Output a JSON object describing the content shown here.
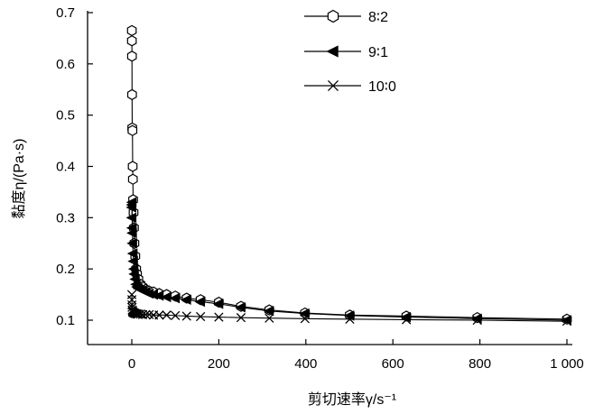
{
  "chart_data": {
    "type": "line",
    "xlabel": "剪切速率γ/s⁻¹",
    "ylabel": "黏度η/(Pa·s)",
    "xlim": [
      -100,
      1000
    ],
    "ylim": [
      0.05,
      0.7
    ],
    "xticks": [
      0,
      200,
      400,
      600,
      800,
      1000
    ],
    "xtick_labels": [
      "0",
      "200",
      "400",
      "600",
      "800",
      "1 000"
    ],
    "yticks": [
      0.1,
      0.2,
      0.3,
      0.4,
      0.5,
      0.6,
      0.7
    ],
    "ytick_labels": [
      "0.1",
      "0.2",
      "0.3",
      "0.4",
      "0.5",
      "0.6",
      "0.7"
    ],
    "legend_position": "top-center",
    "series": [
      {
        "name": "8∶2",
        "marker": "hexagon",
        "x": [
          0.1,
          0.2,
          0.4,
          0.6,
          1,
          1.5,
          2,
          2.5,
          3,
          4,
          5,
          6,
          8,
          10,
          12,
          15,
          20,
          25,
          32,
          40,
          50,
          63,
          80,
          100,
          126,
          158,
          200,
          251,
          316,
          398,
          501,
          631,
          794,
          1000
        ],
        "y": [
          0.665,
          0.645,
          0.615,
          0.54,
          0.475,
          0.47,
          0.4,
          0.375,
          0.335,
          0.31,
          0.28,
          0.25,
          0.225,
          0.2,
          0.19,
          0.18,
          0.17,
          0.165,
          0.16,
          0.157,
          0.155,
          0.152,
          0.15,
          0.147,
          0.143,
          0.14,
          0.135,
          0.127,
          0.12,
          0.114,
          0.11,
          0.108,
          0.105,
          0.102
        ]
      },
      {
        "name": "9∶1",
        "marker": "triangle-left",
        "x": [
          0.1,
          0.2,
          0.4,
          0.6,
          1,
          1.5,
          2,
          3,
          4,
          5,
          6,
          8,
          10,
          12,
          15,
          20,
          25,
          32,
          40,
          50,
          63,
          80,
          100,
          126,
          158,
          200,
          251,
          316,
          398,
          501,
          631,
          794,
          1000
        ],
        "y": [
          0.32,
          0.325,
          0.3,
          0.33,
          0.28,
          0.27,
          0.25,
          0.23,
          0.215,
          0.2,
          0.19,
          0.18,
          0.17,
          0.165,
          0.162,
          0.16,
          0.158,
          0.155,
          0.152,
          0.15,
          0.148,
          0.145,
          0.143,
          0.14,
          0.136,
          0.132,
          0.125,
          0.118,
          0.113,
          0.109,
          0.106,
          0.103,
          0.1
        ]
      },
      {
        "name": "10∶0",
        "marker": "x",
        "x": [
          0.1,
          0.2,
          0.4,
          0.6,
          1,
          1.5,
          2,
          3,
          4,
          5,
          6,
          8,
          10,
          12,
          15,
          20,
          25,
          32,
          40,
          50,
          63,
          80,
          100,
          126,
          158,
          200,
          251,
          316,
          398,
          501,
          631,
          794,
          1000
        ],
        "y": [
          0.15,
          0.14,
          0.13,
          0.125,
          0.12,
          0.118,
          0.116,
          0.115,
          0.115,
          0.114,
          0.114,
          0.113,
          0.113,
          0.112,
          0.112,
          0.112,
          0.111,
          0.111,
          0.111,
          0.11,
          0.11,
          0.11,
          0.109,
          0.108,
          0.107,
          0.106,
          0.105,
          0.104,
          0.103,
          0.102,
          0.101,
          0.1,
          0.098
        ]
      }
    ]
  }
}
